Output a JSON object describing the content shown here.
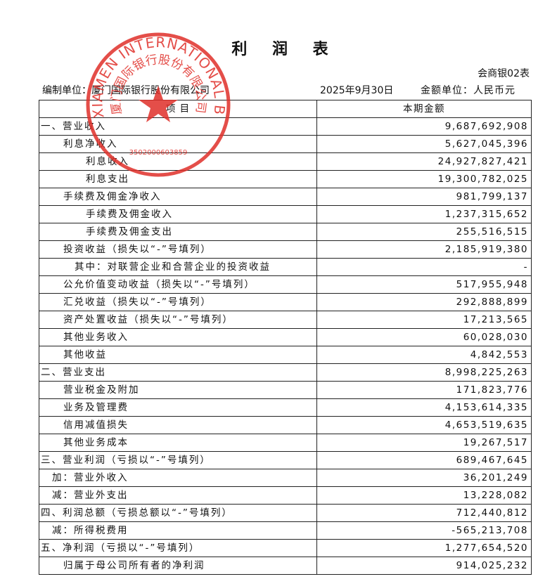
{
  "header": {
    "title": "利 润 表",
    "form_number": "会商银02表",
    "organization": "编制单位：厦门国际银行股份有限公司",
    "date": "2025年9月30日",
    "unit": "金额单位：人民币元"
  },
  "seal": {
    "text_en": "XIAMEN INTERNATIONAL BANK CO.,LTD.",
    "text_cn": "厦门国际银行股份有限公司",
    "code": "3502000603859"
  },
  "table": {
    "columns": [
      "项    目",
      "本期金额"
    ],
    "rows": [
      [
        "一、营业收入",
        "9,687,692,908"
      ],
      [
        "利息净收入",
        "5,627,045,396"
      ],
      [
        "利息收入",
        "24,927,827,421"
      ],
      [
        "利息支出",
        "19,300,782,025"
      ],
      [
        "手续费及佣金净收入",
        "981,799,137"
      ],
      [
        "手续费及佣金收入",
        "1,237,315,652"
      ],
      [
        "手续费及佣金支出",
        "255,516,515"
      ],
      [
        "投资收益（损失以“-”号填列）",
        "2,185,919,380"
      ],
      [
        "其中：对联营企业和合营企业的投资收益",
        "-"
      ],
      [
        "公允价值变动收益（损失以“-”号填列）",
        "517,955,948"
      ],
      [
        "汇兑收益（损失以“-”号填列）",
        "292,888,899"
      ],
      [
        "资产处置收益（损失以“-”号填列）",
        "17,213,565"
      ],
      [
        "其他业务收入",
        "60,028,030"
      ],
      [
        "其他收益",
        "4,842,553"
      ],
      [
        "二、营业支出",
        "8,998,225,263"
      ],
      [
        "营业税金及附加",
        "171,823,776"
      ],
      [
        "业务及管理费",
        "4,153,614,335"
      ],
      [
        "信用减值损失",
        "4,653,519,635"
      ],
      [
        "其他业务成本",
        "19,267,517"
      ],
      [
        "三、营业利润（亏损以“-”号填列）",
        "689,467,645"
      ],
      [
        "加：营业外收入",
        "36,201,249"
      ],
      [
        "减：营业外支出",
        "13,228,082"
      ],
      [
        "四、利润总额（亏损总额以“-”号填列）",
        "712,440,812"
      ],
      [
        "减：所得税费用",
        "-565,213,708"
      ],
      [
        "五、净利润（亏损以“-”号填列）",
        "1,277,654,520"
      ],
      [
        "归属于母公司所有者的净利润",
        "914,025,232"
      ]
    ]
  }
}
